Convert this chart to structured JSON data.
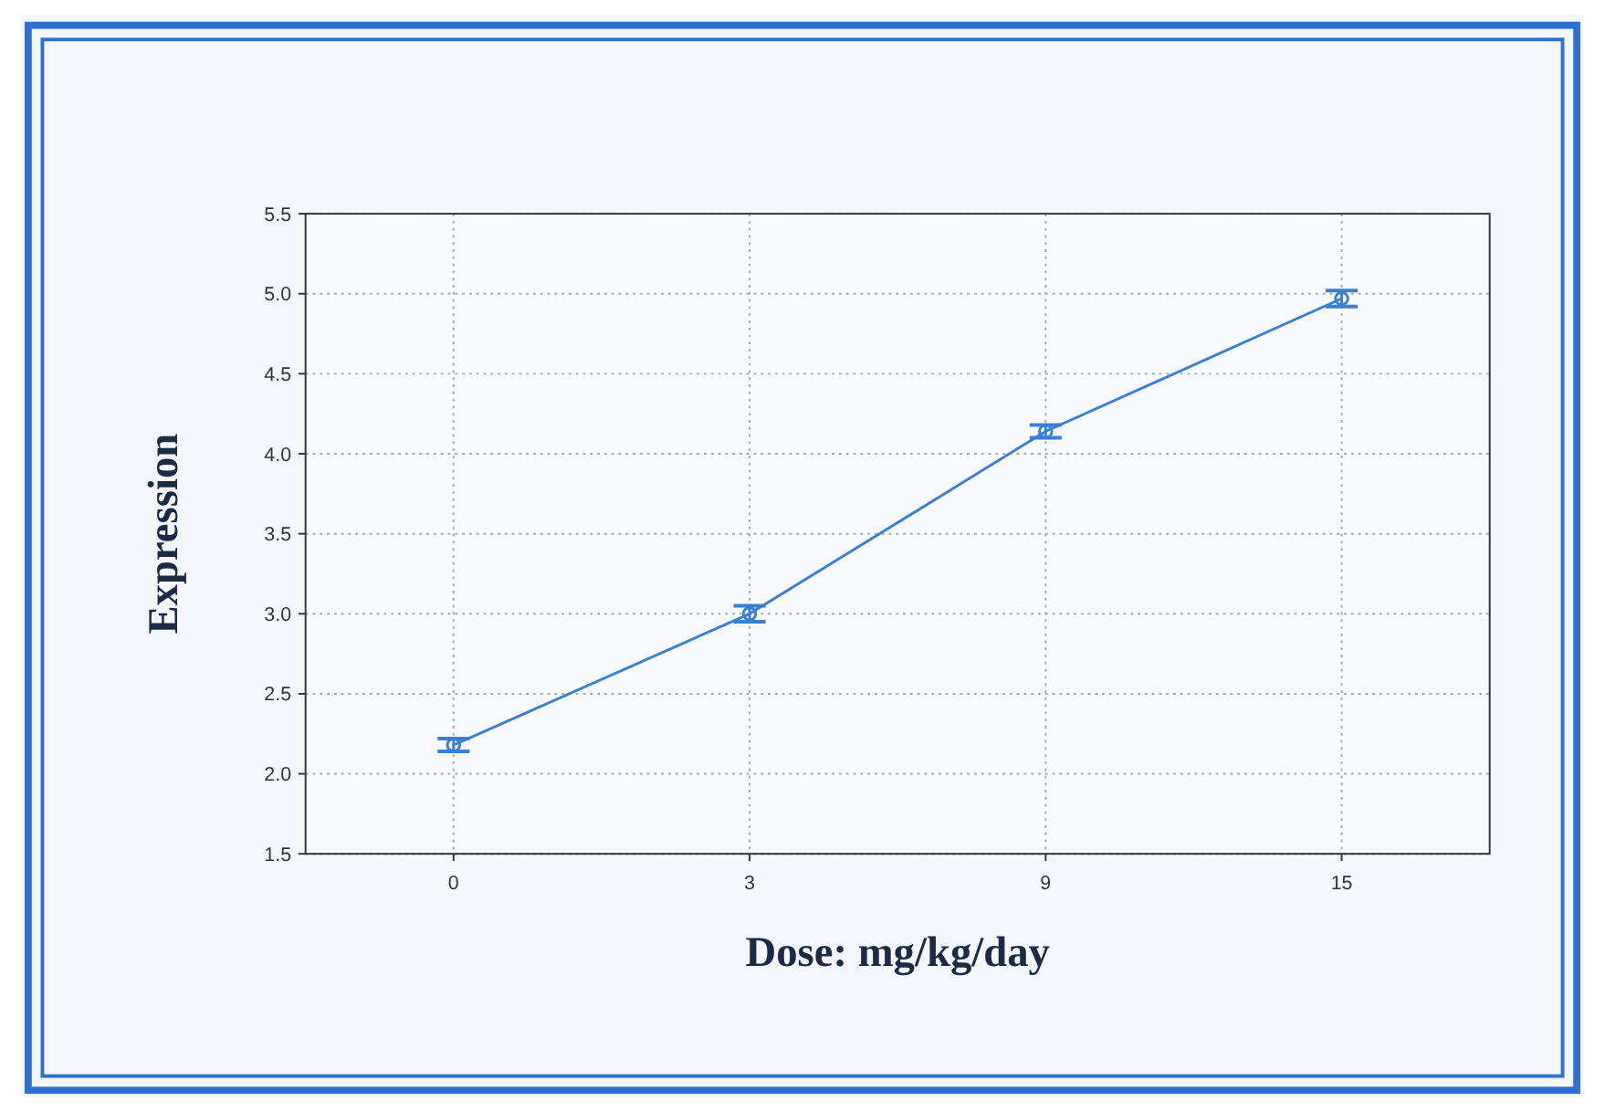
{
  "chart_data": {
    "type": "line",
    "xlabel": "Dose: mg/kg/day",
    "ylabel": "Expression",
    "categories": [
      "0",
      "3",
      "9",
      "15"
    ],
    "series": [
      {
        "color": "#3a7fd5",
        "values": [
          2.18,
          3.0,
          4.14,
          4.97
        ],
        "errors": [
          0.04,
          0.05,
          0.04,
          0.05
        ]
      }
    ],
    "ylim": [
      1.5,
      5.5
    ],
    "yticks": [
      {
        "value": 1.5,
        "label": "1.5"
      },
      {
        "value": 2,
        "label": "2.0"
      },
      {
        "value": 2.5,
        "label": "2.5"
      },
      {
        "value": 3,
        "label": "3.0"
      },
      {
        "value": 3.5,
        "label": "3.5"
      },
      {
        "value": 4,
        "label": "4.0"
      },
      {
        "value": 4.5,
        "label": "4.5"
      },
      {
        "value": 5,
        "label": "5.0"
      },
      {
        "value": 5.5,
        "label": "5.5"
      }
    ],
    "grid": true,
    "marker": "circle",
    "line_style": "solid"
  }
}
